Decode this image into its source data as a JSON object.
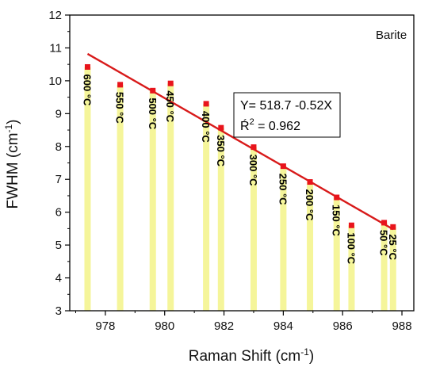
{
  "chart_data": {
    "type": "bar",
    "title": "",
    "mineral_label": "Barite",
    "xlabel_main": "Raman Shift (cm",
    "xlabel_sup": "-1",
    "xlabel_end": ")",
    "ylabel_main": "FWHM (cm",
    "ylabel_sup": "-1",
    "ylabel_end": ")",
    "xlim": [
      976.8,
      988.4
    ],
    "ylim": [
      3,
      12
    ],
    "x_ticks": [
      978,
      980,
      982,
      984,
      986,
      988
    ],
    "y_ticks": [
      3,
      4,
      5,
      6,
      7,
      8,
      9,
      10,
      11,
      12
    ],
    "grid": false,
    "bar_color": "#f5f59a",
    "marker_color": "#e8141c",
    "fit_color": "#d81a1a",
    "points": [
      {
        "x": 977.4,
        "y": 10.42,
        "label": "600 °C"
      },
      {
        "x": 978.5,
        "y": 9.88,
        "label": "550 °C"
      },
      {
        "x": 979.6,
        "y": 9.7,
        "label": "500 °C"
      },
      {
        "x": 980.2,
        "y": 9.92,
        "label": "450 °C"
      },
      {
        "x": 981.4,
        "y": 9.3,
        "label": "400 °C"
      },
      {
        "x": 981.9,
        "y": 8.57,
        "label": "350 °C"
      },
      {
        "x": 983.0,
        "y": 7.98,
        "label": "300 °C"
      },
      {
        "x": 984.0,
        "y": 7.4,
        "label": "250 °C"
      },
      {
        "x": 984.9,
        "y": 6.92,
        "label": "200 °C"
      },
      {
        "x": 985.8,
        "y": 6.45,
        "label": "150 °C"
      },
      {
        "x": 986.3,
        "y": 5.6,
        "label": "100 °C"
      },
      {
        "x": 987.4,
        "y": 5.68,
        "label": "50 °C"
      },
      {
        "x": 987.7,
        "y": 5.55,
        "label": "25 °C"
      }
    ],
    "fit_line": {
      "x": [
        977.4,
        987.7
      ],
      "y": [
        10.82,
        5.48
      ]
    },
    "annotation": {
      "equation": "Y= 518.7 -0.52X",
      "r2_prefix": "Ŕ",
      "r2_sup": "2",
      "r2_rest": " = 0.962"
    }
  }
}
